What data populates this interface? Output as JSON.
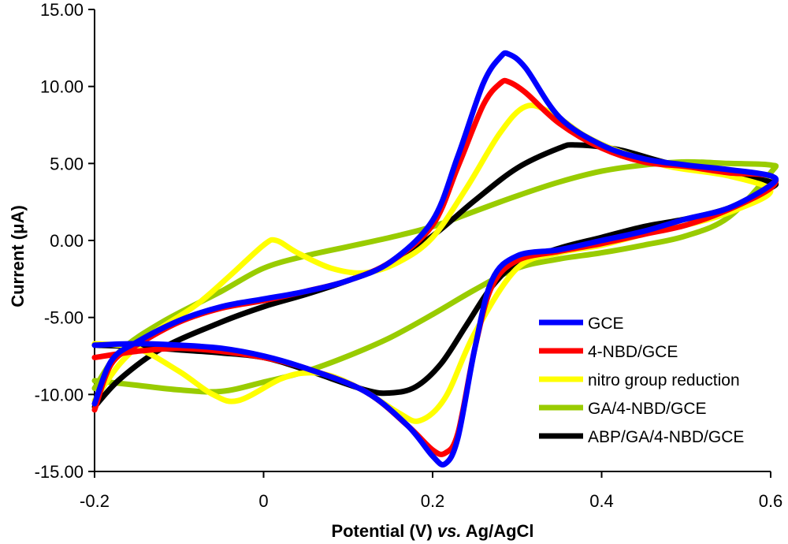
{
  "chart_data": {
    "type": "line",
    "title": "",
    "xlabel": "Potential (V) vs. Ag/AgCl",
    "xlabel_parts": {
      "before": "Potential (V) ",
      "italic": "vs.",
      "after": " Ag/AgCl"
    },
    "ylabel": "Current (μA)",
    "xlim": [
      -0.2,
      0.6
    ],
    "ylim": [
      -15,
      15
    ],
    "x_ticks": [
      {
        "value": -0.2,
        "label": "-0.2"
      },
      {
        "value": 0,
        "label": "0"
      },
      {
        "value": 0.2,
        "label": "0.2"
      },
      {
        "value": 0.4,
        "label": "0.4"
      },
      {
        "value": 0.6,
        "label": "0.6"
      }
    ],
    "y_ticks": [
      {
        "value": 15,
        "label": "15.00"
      },
      {
        "value": 10,
        "label": "10.00"
      },
      {
        "value": 5,
        "label": "5.00"
      },
      {
        "value": 0,
        "label": "0.00"
      },
      {
        "value": -5,
        "label": "-5.00"
      },
      {
        "value": -10,
        "label": "-10.00"
      },
      {
        "value": -15,
        "label": "-15.00"
      }
    ],
    "grid": false,
    "legend_position": "bottom-right",
    "series": [
      {
        "name": "GCE",
        "color": "#0000ff",
        "points": [
          [
            -0.2,
            -10.6
          ],
          [
            -0.18,
            -7.8
          ],
          [
            -0.15,
            -6.6
          ],
          [
            -0.1,
            -5.2
          ],
          [
            -0.05,
            -4.3
          ],
          [
            0,
            -3.8
          ],
          [
            0.05,
            -3.3
          ],
          [
            0.1,
            -2.6
          ],
          [
            0.15,
            -1.4
          ],
          [
            0.2,
            1.3
          ],
          [
            0.23,
            5.5
          ],
          [
            0.26,
            10.2
          ],
          [
            0.28,
            11.9
          ],
          [
            0.29,
            12.1
          ],
          [
            0.31,
            11.2
          ],
          [
            0.35,
            8.0
          ],
          [
            0.4,
            6.2
          ],
          [
            0.45,
            5.3
          ],
          [
            0.5,
            4.9
          ],
          [
            0.55,
            4.6
          ],
          [
            0.6,
            4.2
          ],
          [
            0.6,
            3.6
          ],
          [
            0.55,
            2.1
          ],
          [
            0.5,
            1.4
          ],
          [
            0.45,
            0.6
          ],
          [
            0.4,
            0.0
          ],
          [
            0.35,
            -0.6
          ],
          [
            0.3,
            -1.0
          ],
          [
            0.27,
            -2.6
          ],
          [
            0.25,
            -7.0
          ],
          [
            0.23,
            -12.8
          ],
          [
            0.215,
            -14.5
          ],
          [
            0.2,
            -14.0
          ],
          [
            0.17,
            -12.0
          ],
          [
            0.12,
            -9.8
          ],
          [
            0.05,
            -8.3
          ],
          [
            0,
            -7.5
          ],
          [
            -0.05,
            -7.0
          ],
          [
            -0.1,
            -6.8
          ],
          [
            -0.15,
            -6.7
          ],
          [
            -0.2,
            -6.8
          ]
        ]
      },
      {
        "name": "4-NBD/GCE",
        "color": "#ff0000",
        "points": [
          [
            -0.2,
            -11.0
          ],
          [
            -0.18,
            -8.0
          ],
          [
            -0.15,
            -6.8
          ],
          [
            -0.1,
            -5.3
          ],
          [
            -0.05,
            -4.4
          ],
          [
            0,
            -3.9
          ],
          [
            0.05,
            -3.3
          ],
          [
            0.1,
            -2.6
          ],
          [
            0.15,
            -1.4
          ],
          [
            0.2,
            1.0
          ],
          [
            0.23,
            4.8
          ],
          [
            0.26,
            8.8
          ],
          [
            0.28,
            10.2
          ],
          [
            0.29,
            10.3
          ],
          [
            0.31,
            9.6
          ],
          [
            0.35,
            7.6
          ],
          [
            0.4,
            6.0
          ],
          [
            0.45,
            5.1
          ],
          [
            0.5,
            4.8
          ],
          [
            0.55,
            4.4
          ],
          [
            0.6,
            4.2
          ],
          [
            0.6,
            3.4
          ],
          [
            0.55,
            2.0
          ],
          [
            0.5,
            1.0
          ],
          [
            0.45,
            0.4
          ],
          [
            0.4,
            -0.2
          ],
          [
            0.35,
            -0.7
          ],
          [
            0.3,
            -1.3
          ],
          [
            0.27,
            -3.0
          ],
          [
            0.25,
            -7.0
          ],
          [
            0.23,
            -12.5
          ],
          [
            0.215,
            -13.8
          ],
          [
            0.2,
            -13.6
          ],
          [
            0.17,
            -12.0
          ],
          [
            0.12,
            -9.8
          ],
          [
            0.05,
            -8.3
          ],
          [
            0,
            -7.6
          ],
          [
            -0.05,
            -7.2
          ],
          [
            -0.1,
            -7.0
          ],
          [
            -0.15,
            -7.2
          ],
          [
            -0.2,
            -7.6
          ]
        ]
      },
      {
        "name": "nitro group reduction",
        "color": "#ffff00",
        "points": [
          [
            -0.2,
            -10.4
          ],
          [
            -0.17,
            -8.0
          ],
          [
            -0.13,
            -6.0
          ],
          [
            -0.08,
            -4.2
          ],
          [
            -0.04,
            -2.3
          ],
          [
            0.0,
            -0.3
          ],
          [
            0.015,
            0.0
          ],
          [
            0.04,
            -0.8
          ],
          [
            0.08,
            -1.8
          ],
          [
            0.12,
            -2.1
          ],
          [
            0.16,
            -1.4
          ],
          [
            0.2,
            0.2
          ],
          [
            0.24,
            3.4
          ],
          [
            0.28,
            7.0
          ],
          [
            0.31,
            8.7
          ],
          [
            0.34,
            8.3
          ],
          [
            0.38,
            6.8
          ],
          [
            0.42,
            5.8
          ],
          [
            0.48,
            4.8
          ],
          [
            0.55,
            4.2
          ],
          [
            0.6,
            3.2
          ],
          [
            0.55,
            1.8
          ],
          [
            0.5,
            1.0
          ],
          [
            0.45,
            0.4
          ],
          [
            0.4,
            -0.3
          ],
          [
            0.35,
            -0.8
          ],
          [
            0.3,
            -1.8
          ],
          [
            0.25,
            -6.0
          ],
          [
            0.215,
            -10.2
          ],
          [
            0.185,
            -11.7
          ],
          [
            0.16,
            -11.2
          ],
          [
            0.12,
            -9.8
          ],
          [
            0.08,
            -8.8
          ],
          [
            0.05,
            -8.6
          ],
          [
            0.02,
            -9.0
          ],
          [
            -0.03,
            -10.4
          ],
          [
            -0.06,
            -10.0
          ],
          [
            -0.1,
            -8.5
          ],
          [
            -0.15,
            -7.0
          ],
          [
            -0.2,
            -6.7
          ]
        ]
      },
      {
        "name": "GA/4-NBD/GCE",
        "color": "#99cc00",
        "points": [
          [
            -0.2,
            -9.6
          ],
          [
            -0.17,
            -7.2
          ],
          [
            -0.12,
            -5.3
          ],
          [
            -0.05,
            -3.3
          ],
          [
            0,
            -1.8
          ],
          [
            0.05,
            -1.0
          ],
          [
            0.1,
            -0.4
          ],
          [
            0.15,
            0.2
          ],
          [
            0.2,
            0.9
          ],
          [
            0.25,
            1.9
          ],
          [
            0.3,
            2.9
          ],
          [
            0.35,
            3.8
          ],
          [
            0.4,
            4.5
          ],
          [
            0.45,
            4.9
          ],
          [
            0.5,
            5.1
          ],
          [
            0.55,
            5.0
          ],
          [
            0.6,
            4.9
          ],
          [
            0.6,
            4.4
          ],
          [
            0.55,
            1.5
          ],
          [
            0.5,
            0.3
          ],
          [
            0.45,
            -0.3
          ],
          [
            0.4,
            -0.8
          ],
          [
            0.35,
            -1.2
          ],
          [
            0.3,
            -1.8
          ],
          [
            0.25,
            -3.2
          ],
          [
            0.2,
            -4.8
          ],
          [
            0.15,
            -6.3
          ],
          [
            0.1,
            -7.5
          ],
          [
            0.05,
            -8.5
          ],
          [
            0,
            -9.2
          ],
          [
            -0.05,
            -9.8
          ],
          [
            -0.1,
            -9.7
          ],
          [
            -0.15,
            -9.4
          ],
          [
            -0.2,
            -9.1
          ]
        ]
      },
      {
        "name": "ABP/GA/4-NBD/GCE",
        "color": "#000000",
        "points": [
          [
            -0.2,
            -10.8
          ],
          [
            -0.17,
            -9.0
          ],
          [
            -0.12,
            -7.0
          ],
          [
            -0.05,
            -5.3
          ],
          [
            0,
            -4.3
          ],
          [
            0.05,
            -3.5
          ],
          [
            0.1,
            -2.6
          ],
          [
            0.15,
            -1.5
          ],
          [
            0.2,
            0.3
          ],
          [
            0.25,
            2.6
          ],
          [
            0.3,
            4.7
          ],
          [
            0.35,
            6.0
          ],
          [
            0.37,
            6.2
          ],
          [
            0.42,
            5.9
          ],
          [
            0.48,
            5.0
          ],
          [
            0.55,
            4.3
          ],
          [
            0.6,
            3.8
          ],
          [
            0.6,
            3.4
          ],
          [
            0.55,
            2.1
          ],
          [
            0.5,
            1.4
          ],
          [
            0.45,
            0.9
          ],
          [
            0.4,
            0.2
          ],
          [
            0.35,
            -0.5
          ],
          [
            0.3,
            -1.5
          ],
          [
            0.27,
            -3.0
          ],
          [
            0.24,
            -5.5
          ],
          [
            0.21,
            -8.0
          ],
          [
            0.18,
            -9.5
          ],
          [
            0.15,
            -9.9
          ],
          [
            0.12,
            -9.7
          ],
          [
            0.05,
            -8.4
          ],
          [
            0,
            -7.6
          ],
          [
            -0.05,
            -7.3
          ],
          [
            -0.1,
            -7.1
          ],
          [
            -0.15,
            -6.9
          ],
          [
            -0.2,
            -6.8
          ]
        ]
      }
    ]
  }
}
